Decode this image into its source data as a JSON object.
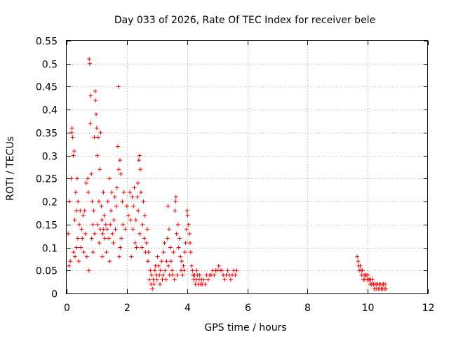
{
  "chart_data": {
    "type": "scatter",
    "title": "Day 033 of 2026, Rate Of TEC Index for receiver bele",
    "xlabel": "GPS time / hours",
    "ylabel": "ROTI / TECUs",
    "xlim": [
      0,
      12
    ],
    "ylim": [
      0,
      0.55
    ],
    "x_ticks": [
      0,
      2,
      4,
      6,
      8,
      10,
      12
    ],
    "x_tick_labels": [
      "0",
      "2",
      "4",
      "6",
      "8",
      "10",
      "12"
    ],
    "y_ticks": [
      0,
      0.05,
      0.1,
      0.15,
      0.2,
      0.25,
      0.3,
      0.35,
      0.4,
      0.45,
      0.5,
      0.55
    ],
    "y_tick_labels": [
      "0",
      "0.05",
      "0.1",
      "0.15",
      "0.2",
      "0.25",
      "0.3",
      "0.35",
      "0.4",
      "0.45",
      "0.5",
      "0.55"
    ],
    "grid": true,
    "marker": "+",
    "color": "#ee0000",
    "series": [
      {
        "name": "ROTI",
        "points": [
          [
            0.05,
            0.13
          ],
          [
            0.08,
            0.06
          ],
          [
            0.1,
            0.2
          ],
          [
            0.12,
            0.07
          ],
          [
            0.15,
            0.25
          ],
          [
            0.17,
            0.35
          ],
          [
            0.18,
            0.36
          ],
          [
            0.2,
            0.34
          ],
          [
            0.22,
            0.3
          ],
          [
            0.23,
            0.09
          ],
          [
            0.25,
            0.31
          ],
          [
            0.27,
            0.16
          ],
          [
            0.28,
            0.08
          ],
          [
            0.3,
            0.22
          ],
          [
            0.32,
            0.18
          ],
          [
            0.33,
            0.1
          ],
          [
            0.35,
            0.25
          ],
          [
            0.37,
            0.12
          ],
          [
            0.38,
            0.2
          ],
          [
            0.4,
            0.07
          ],
          [
            0.42,
            0.15
          ],
          [
            0.45,
            0.18
          ],
          [
            0.47,
            0.1
          ],
          [
            0.5,
            0.14
          ],
          [
            0.52,
            0.12
          ],
          [
            0.55,
            0.17
          ],
          [
            0.57,
            0.09
          ],
          [
            0.6,
            0.18
          ],
          [
            0.62,
            0.13
          ],
          [
            0.65,
            0.24
          ],
          [
            0.67,
            0.08
          ],
          [
            0.7,
            0.25
          ],
          [
            0.72,
            0.22
          ],
          [
            0.74,
            0.05
          ],
          [
            0.75,
            0.51
          ],
          [
            0.77,
            0.5
          ],
          [
            0.78,
            0.37
          ],
          [
            0.8,
            0.43
          ],
          [
            0.82,
            0.26
          ],
          [
            0.83,
            0.12
          ],
          [
            0.85,
            0.2
          ],
          [
            0.87,
            0.15
          ],
          [
            0.88,
            0.09
          ],
          [
            0.9,
            0.18
          ],
          [
            0.92,
            0.34
          ],
          [
            0.93,
            0.13
          ],
          [
            0.95,
            0.44
          ],
          [
            0.96,
            0.42
          ],
          [
            0.98,
            0.39
          ],
          [
            1.0,
            0.36
          ],
          [
            1.02,
            0.3
          ],
          [
            1.03,
            0.15
          ],
          [
            1.05,
            0.34
          ],
          [
            1.07,
            0.2
          ],
          [
            1.08,
            0.11
          ],
          [
            1.1,
            0.27
          ],
          [
            1.12,
            0.14
          ],
          [
            1.13,
            0.35
          ],
          [
            1.15,
            0.19
          ],
          [
            1.17,
            0.16
          ],
          [
            1.18,
            0.08
          ],
          [
            1.2,
            0.13
          ],
          [
            1.22,
            0.22
          ],
          [
            1.23,
            0.14
          ],
          [
            1.25,
            0.17
          ],
          [
            1.27,
            0.12
          ],
          [
            1.3,
            0.15
          ],
          [
            1.32,
            0.09
          ],
          [
            1.35,
            0.14
          ],
          [
            1.37,
            0.2
          ],
          [
            1.4,
            0.12
          ],
          [
            1.42,
            0.25
          ],
          [
            1.43,
            0.07
          ],
          [
            1.45,
            0.15
          ],
          [
            1.47,
            0.18
          ],
          [
            1.5,
            0.22
          ],
          [
            1.52,
            0.13
          ],
          [
            1.55,
            0.11
          ],
          [
            1.57,
            0.16
          ],
          [
            1.6,
            0.21
          ],
          [
            1.62,
            0.14
          ],
          [
            1.65,
            0.19
          ],
          [
            1.67,
            0.23
          ],
          [
            1.7,
            0.32
          ],
          [
            1.72,
            0.45
          ],
          [
            1.73,
            0.27
          ],
          [
            1.75,
            0.08
          ],
          [
            1.77,
            0.29
          ],
          [
            1.78,
            0.1
          ],
          [
            1.8,
            0.26
          ],
          [
            1.82,
            0.12
          ],
          [
            1.85,
            0.2
          ],
          [
            1.87,
            0.15
          ],
          [
            1.9,
            0.22
          ],
          [
            1.95,
            0.14
          ],
          [
            2.0,
            0.19
          ],
          [
            2.05,
            0.17
          ],
          [
            2.1,
            0.22
          ],
          [
            2.12,
            0.16
          ],
          [
            2.15,
            0.08
          ],
          [
            2.18,
            0.21
          ],
          [
            2.2,
            0.14
          ],
          [
            2.22,
            0.19
          ],
          [
            2.25,
            0.23
          ],
          [
            2.27,
            0.11
          ],
          [
            2.3,
            0.16
          ],
          [
            2.32,
            0.1
          ],
          [
            2.35,
            0.21
          ],
          [
            2.37,
            0.24
          ],
          [
            2.38,
            0.18
          ],
          [
            2.4,
            0.29
          ],
          [
            2.42,
            0.3
          ],
          [
            2.43,
            0.13
          ],
          [
            2.45,
            0.27
          ],
          [
            2.47,
            0.22
          ],
          [
            2.5,
            0.1
          ],
          [
            2.52,
            0.15
          ],
          [
            2.55,
            0.2
          ],
          [
            2.58,
            0.12
          ],
          [
            2.6,
            0.17
          ],
          [
            2.62,
            0.09
          ],
          [
            2.65,
            0.11
          ],
          [
            2.68,
            0.14
          ],
          [
            2.7,
            0.07
          ],
          [
            2.72,
            0.09
          ],
          [
            2.75,
            0.03
          ],
          [
            2.78,
            0.05
          ],
          [
            2.8,
            0.02
          ],
          [
            2.82,
            0.04
          ],
          [
            2.85,
            0.01
          ],
          [
            2.88,
            0.03
          ],
          [
            2.9,
            0.02
          ],
          [
            2.93,
            0.05
          ],
          [
            2.95,
            0.06
          ],
          [
            2.98,
            0.04
          ],
          [
            3.0,
            0.03
          ],
          [
            3.02,
            0.08
          ],
          [
            3.05,
            0.06
          ],
          [
            3.08,
            0.04
          ],
          [
            3.1,
            0.02
          ],
          [
            3.12,
            0.05
          ],
          [
            3.15,
            0.07
          ],
          [
            3.18,
            0.03
          ],
          [
            3.2,
            0.04
          ],
          [
            3.22,
            0.09
          ],
          [
            3.25,
            0.11
          ],
          [
            3.27,
            0.05
          ],
          [
            3.3,
            0.03
          ],
          [
            3.32,
            0.07
          ],
          [
            3.35,
            0.12
          ],
          [
            3.37,
            0.19
          ],
          [
            3.38,
            0.06
          ],
          [
            3.4,
            0.14
          ],
          [
            3.42,
            0.04
          ],
          [
            3.45,
            0.1
          ],
          [
            3.47,
            0.07
          ],
          [
            3.5,
            0.05
          ],
          [
            3.52,
            0.04
          ],
          [
            3.55,
            0.09
          ],
          [
            3.58,
            0.03
          ],
          [
            3.6,
            0.18
          ],
          [
            3.62,
            0.2
          ],
          [
            3.63,
            0.21
          ],
          [
            3.65,
            0.13
          ],
          [
            3.67,
            0.04
          ],
          [
            3.7,
            0.15
          ],
          [
            3.72,
            0.1
          ],
          [
            3.75,
            0.12
          ],
          [
            3.78,
            0.08
          ],
          [
            3.8,
            0.05
          ],
          [
            3.82,
            0.07
          ],
          [
            3.85,
            0.04
          ],
          [
            3.88,
            0.06
          ],
          [
            3.9,
            0.05
          ],
          [
            3.93,
            0.09
          ],
          [
            3.95,
            0.11
          ],
          [
            3.98,
            0.14
          ],
          [
            4.0,
            0.18
          ],
          [
            4.02,
            0.17
          ],
          [
            4.05,
            0.15
          ],
          [
            4.08,
            0.13
          ],
          [
            4.1,
            0.11
          ],
          [
            4.12,
            0.09
          ],
          [
            4.15,
            0.06
          ],
          [
            4.18,
            0.05
          ],
          [
            4.2,
            0.04
          ],
          [
            4.22,
            0.03
          ],
          [
            4.25,
            0.04
          ],
          [
            4.28,
            0.02
          ],
          [
            4.3,
            0.03
          ],
          [
            4.32,
            0.05
          ],
          [
            4.35,
            0.04
          ],
          [
            4.38,
            0.02
          ],
          [
            4.4,
            0.03
          ],
          [
            4.42,
            0.04
          ],
          [
            4.45,
            0.02
          ],
          [
            4.48,
            0.03
          ],
          [
            4.5,
            0.02
          ],
          [
            4.55,
            0.03
          ],
          [
            4.6,
            0.02
          ],
          [
            4.65,
            0.04
          ],
          [
            4.7,
            0.03
          ],
          [
            4.75,
            0.04
          ],
          [
            4.8,
            0.04
          ],
          [
            4.85,
            0.05
          ],
          [
            4.9,
            0.04
          ],
          [
            4.95,
            0.05
          ],
          [
            5.0,
            0.05
          ],
          [
            5.05,
            0.06
          ],
          [
            5.1,
            0.05
          ],
          [
            5.15,
            0.05
          ],
          [
            5.2,
            0.04
          ],
          [
            5.25,
            0.03
          ],
          [
            5.3,
            0.04
          ],
          [
            5.35,
            0.05
          ],
          [
            5.4,
            0.04
          ],
          [
            5.45,
            0.03
          ],
          [
            5.5,
            0.04
          ],
          [
            5.55,
            0.05
          ],
          [
            5.6,
            0.04
          ],
          [
            5.65,
            0.05
          ],
          [
            9.65,
            0.08
          ],
          [
            9.68,
            0.07
          ],
          [
            9.7,
            0.06
          ],
          [
            9.72,
            0.05
          ],
          [
            9.75,
            0.06
          ],
          [
            9.78,
            0.05
          ],
          [
            9.8,
            0.04
          ],
          [
            9.82,
            0.05
          ],
          [
            9.85,
            0.03
          ],
          [
            9.88,
            0.04
          ],
          [
            9.9,
            0.03
          ],
          [
            9.93,
            0.04
          ],
          [
            9.95,
            0.04
          ],
          [
            9.98,
            0.03
          ],
          [
            10.0,
            0.04
          ],
          [
            10.02,
            0.03
          ],
          [
            10.05,
            0.03
          ],
          [
            10.08,
            0.02
          ],
          [
            10.1,
            0.03
          ],
          [
            10.12,
            0.02
          ],
          [
            10.15,
            0.03
          ],
          [
            10.18,
            0.02
          ],
          [
            10.2,
            0.02
          ],
          [
            10.22,
            0.01
          ],
          [
            10.25,
            0.02
          ],
          [
            10.28,
            0.01
          ],
          [
            10.3,
            0.02
          ],
          [
            10.32,
            0.02
          ],
          [
            10.35,
            0.01
          ],
          [
            10.38,
            0.02
          ],
          [
            10.4,
            0.01
          ],
          [
            10.42,
            0.02
          ],
          [
            10.45,
            0.01
          ],
          [
            10.48,
            0.02
          ],
          [
            10.5,
            0.01
          ],
          [
            10.52,
            0.02
          ],
          [
            10.55,
            0.01
          ],
          [
            10.58,
            0.02
          ],
          [
            10.6,
            0.01
          ]
        ]
      }
    ]
  }
}
